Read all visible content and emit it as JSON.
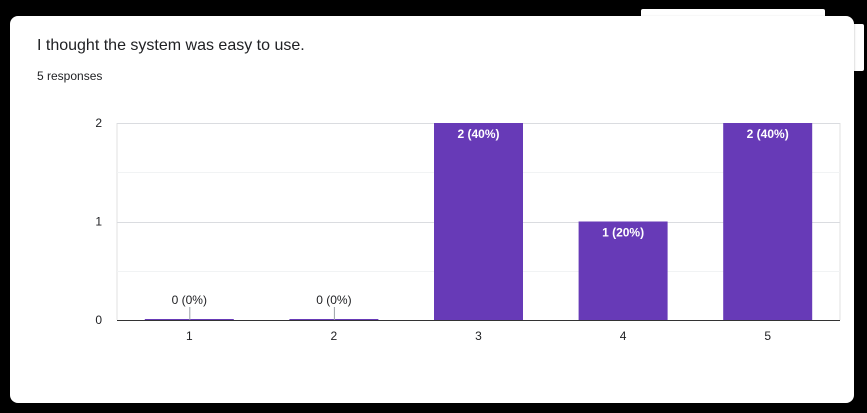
{
  "question": {
    "title": "I thought the system was easy to use.",
    "responses_label": "5 responses"
  },
  "colors": {
    "bar": "#673ab7",
    "grid": "#e0e0e0",
    "axis": "#333333"
  },
  "chart_data": {
    "type": "bar",
    "title": "I thought the system was easy to use.",
    "subtitle": "5 responses",
    "xlabel": "",
    "ylabel": "",
    "categories": [
      "1",
      "2",
      "3",
      "4",
      "5"
    ],
    "values": [
      0,
      0,
      2,
      1,
      2
    ],
    "data_labels": [
      "0 (0%)",
      "0 (0%)",
      "2 (40%)",
      "1 (20%)",
      "2 (40%)"
    ],
    "ylim": [
      0,
      2
    ],
    "yticks": [
      0,
      1,
      2
    ],
    "grid": true,
    "legend": "none"
  }
}
